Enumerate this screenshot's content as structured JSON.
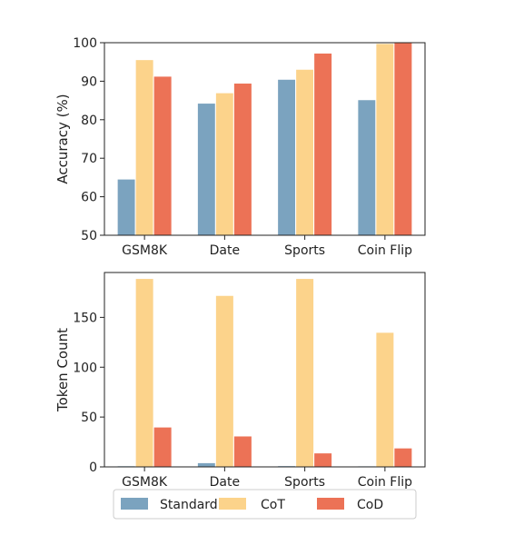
{
  "colors": {
    "Standard": "#7ba3bf",
    "CoT": "#fcd38b",
    "CoD": "#ec7256",
    "axis": "#222222",
    "legend_border": "#cccccc"
  },
  "chart_data": [
    {
      "type": "bar",
      "categories": [
        "GSM8K",
        "Date",
        "Sports",
        "Coin Flip"
      ],
      "series": [
        {
          "name": "Standard",
          "values": [
            64.6,
            84.3,
            90.5,
            85.2
          ]
        },
        {
          "name": "CoT",
          "values": [
            95.6,
            87.0,
            93.1,
            99.8
          ]
        },
        {
          "name": "CoD",
          "values": [
            91.3,
            89.5,
            97.3,
            100.0
          ]
        }
      ],
      "xlabel": "",
      "ylabel": "Accuracy (%)",
      "ylim": [
        50,
        100
      ],
      "yticks": [
        50,
        60,
        70,
        80,
        90,
        100
      ],
      "grid": false
    },
    {
      "type": "bar",
      "categories": [
        "GSM8K",
        "Date",
        "Sports",
        "Coin Flip"
      ],
      "series": [
        {
          "name": "Standard",
          "values": [
            1.1,
            4.2,
            1.2,
            1.0
          ]
        },
        {
          "name": "CoT",
          "values": [
            189,
            172,
            189,
            135
          ]
        },
        {
          "name": "CoD",
          "values": [
            40,
            31,
            14,
            19
          ]
        }
      ],
      "xlabel": "",
      "ylabel": "Token Count",
      "ylim": [
        0,
        195
      ],
      "yticks": [
        0,
        50,
        100,
        150
      ],
      "grid": false
    }
  ],
  "legend": {
    "placement": "bottom-center",
    "entries": [
      "Standard",
      "CoT",
      "CoD"
    ]
  }
}
